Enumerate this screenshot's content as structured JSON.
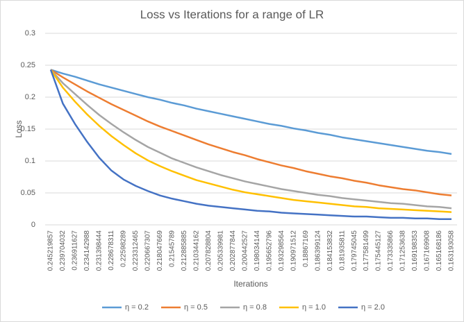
{
  "chart_data": {
    "type": "line",
    "title": "Loss vs Iterations for a range of LR",
    "x_label": "Iterations",
    "y_label": "Loss",
    "categories": [
      "0.245219857",
      "0.239704032",
      "0.236911627",
      "0.234142988",
      "0.231398444",
      "0.228678311",
      "0.22598289",
      "0.223312465",
      "0.220667307",
      "0.218047669",
      "0.21545789",
      "0.212885885",
      "0.210344162",
      "0.207828804",
      "0.205339981",
      "0.202877844",
      "0.200442527",
      "0.198034144",
      "0.195652796",
      "0.193298564",
      "0.190971512",
      "0.18867169",
      "0.186399124",
      "0.184153832",
      "0.181935811",
      "0.179745045",
      "0.177581499",
      "0.175445127",
      "0.173335866",
      "0.171253638",
      "0.169198353",
      "0.167169908",
      "0.165168186",
      "0.163193058"
    ],
    "series": [
      {
        "name": "η = 0.2",
        "color": "#5b9bd5",
        "values": [
          0.243,
          0.237,
          0.232,
          0.226,
          0.22,
          0.215,
          0.21,
          0.205,
          0.2,
          0.196,
          0.191,
          0.187,
          0.182,
          0.178,
          0.174,
          0.17,
          0.166,
          0.162,
          0.158,
          0.155,
          0.151,
          0.148,
          0.144,
          0.141,
          0.137,
          0.134,
          0.131,
          0.128,
          0.125,
          0.122,
          0.119,
          0.116,
          0.114,
          0.111
        ]
      },
      {
        "name": "η = 0.5",
        "color": "#ed7d31",
        "values": [
          0.243,
          0.231,
          0.22,
          0.209,
          0.199,
          0.189,
          0.18,
          0.171,
          0.162,
          0.154,
          0.147,
          0.14,
          0.133,
          0.126,
          0.12,
          0.114,
          0.109,
          0.103,
          0.098,
          0.093,
          0.089,
          0.084,
          0.08,
          0.076,
          0.073,
          0.069,
          0.066,
          0.062,
          0.059,
          0.056,
          0.054,
          0.051,
          0.048,
          0.046
        ]
      },
      {
        "name": "η = 0.8",
        "color": "#a5a5a5",
        "values": [
          0.243,
          0.222,
          0.205,
          0.188,
          0.172,
          0.158,
          0.145,
          0.133,
          0.122,
          0.113,
          0.104,
          0.097,
          0.09,
          0.084,
          0.078,
          0.073,
          0.068,
          0.064,
          0.06,
          0.056,
          0.053,
          0.05,
          0.047,
          0.045,
          0.042,
          0.04,
          0.038,
          0.036,
          0.034,
          0.033,
          0.031,
          0.029,
          0.028,
          0.026
        ]
      },
      {
        "name": "η = 1.0",
        "color": "#ffc000",
        "values": [
          0.243,
          0.215,
          0.193,
          0.173,
          0.155,
          0.139,
          0.125,
          0.112,
          0.101,
          0.092,
          0.084,
          0.077,
          0.07,
          0.065,
          0.06,
          0.055,
          0.051,
          0.048,
          0.045,
          0.042,
          0.039,
          0.037,
          0.035,
          0.033,
          0.031,
          0.029,
          0.028,
          0.026,
          0.025,
          0.024,
          0.023,
          0.022,
          0.021,
          0.02
        ]
      },
      {
        "name": "η = 2.0",
        "color": "#4472c4",
        "values": [
          0.243,
          0.19,
          0.158,
          0.13,
          0.105,
          0.085,
          0.071,
          0.061,
          0.053,
          0.046,
          0.041,
          0.037,
          0.033,
          0.03,
          0.028,
          0.026,
          0.024,
          0.022,
          0.021,
          0.019,
          0.018,
          0.017,
          0.016,
          0.015,
          0.014,
          0.013,
          0.013,
          0.012,
          0.011,
          0.011,
          0.01,
          0.01,
          0.009,
          0.009
        ]
      }
    ],
    "ylim": [
      0,
      0.3
    ],
    "yticks": [
      0,
      0.05,
      0.1,
      0.15,
      0.2,
      0.25,
      0.3
    ],
    "grid": true,
    "legend": "bottom"
  }
}
